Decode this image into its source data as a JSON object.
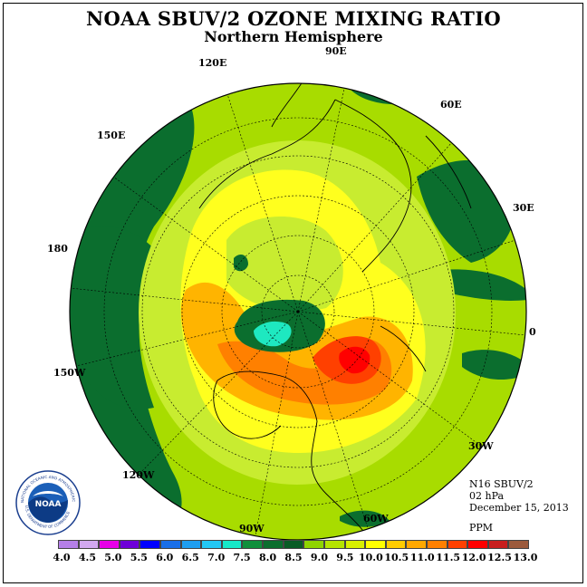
{
  "header": {
    "title": "NOAA SBUV/2 OZONE MIXING RATIO",
    "subtitle": "Northern Hemisphere"
  },
  "longitude_labels": {
    "e90": "90E",
    "e60": "60E",
    "e30": "30E",
    "zero": "0",
    "w30": "30W",
    "w60": "60W",
    "w90": "90W",
    "w120": "120W",
    "w150": "150W",
    "d180": "180",
    "e150": "150E",
    "e120": "120E"
  },
  "info": {
    "satellite": "N16 SBUV/2",
    "level": "02 hPa",
    "date": "December 15, 2013",
    "units": "PPM"
  },
  "colorbar": {
    "colors": [
      "#b57fe8",
      "#d2a8f0",
      "#e800e8",
      "#6e00d8",
      "#0000ff",
      "#1a6fe8",
      "#1f9ef0",
      "#22c8f5",
      "#16e8c8",
      "#0f8f3c",
      "#0b6e2e",
      "#085c25",
      "#8fd400",
      "#b5e400",
      "#d8f000",
      "#ffff00",
      "#ffcc00",
      "#ffa800",
      "#ff8000",
      "#ff4000",
      "#ff0000",
      "#c81e1e",
      "#9c5a3c"
    ],
    "ticks": [
      "4.0",
      "4.5",
      "5.0",
      "5.5",
      "6.0",
      "6.5",
      "7.0",
      "7.5",
      "8.0",
      "8.5",
      "9.0",
      "9.5",
      "10.0",
      "10.5",
      "11.0",
      "11.5",
      "12.0",
      "12.5",
      "13.0"
    ]
  },
  "logo": {
    "text": "NOAA",
    "ring_text": "NATIONAL OCEANIC AND ATMOSPHERIC ADMINISTRATION",
    "ring_text_bottom": "U.S. DEPARTMENT OF COMMERCE"
  },
  "colors": {
    "background_field": "#a8dc00",
    "dark_green": "#0b6e2e",
    "light_green": "#c8ec30",
    "yellow": "#ffff1e",
    "orange": "#ffb400",
    "red": "#ff0000",
    "cyan": "#1ee8c0"
  }
}
